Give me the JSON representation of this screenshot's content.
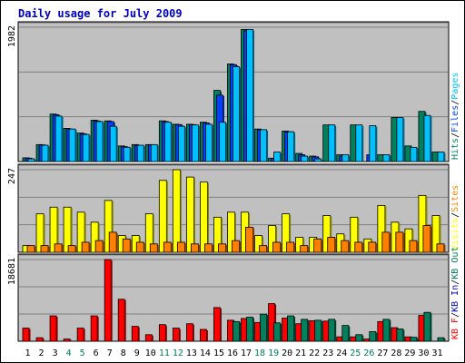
{
  "chart_data": {
    "type": "bar",
    "title": "Daily usage for July 2009",
    "colors": {
      "background": "#ffffff",
      "plot_bg": "#c0c0c0",
      "border": "#000000",
      "gridline": "#808080",
      "title": "#0000c0",
      "hits": "#00805c",
      "files": "#0040ff",
      "pages": "#00c0ff",
      "visits": "#ffff00",
      "sites": "#ff8000",
      "kb_in": "#0000c0",
      "kb_out": "#00805c",
      "kb_f": "#ff0000",
      "weekend_label": "#00805c",
      "weekday_label": "#000000"
    },
    "categories": [
      "1",
      "2",
      "3",
      "4",
      "5",
      "6",
      "7",
      "8",
      "9",
      "10",
      "11",
      "12",
      "13",
      "14",
      "15",
      "16",
      "17",
      "18",
      "19",
      "20",
      "21",
      "22",
      "23",
      "24",
      "25",
      "26",
      "27",
      "28",
      "29",
      "30",
      "31"
    ],
    "weekend_days": [
      "4",
      "5",
      "11",
      "12",
      "18",
      "19",
      "25",
      "26"
    ],
    "panels": [
      {
        "id": "hits-files-pages",
        "max_label": "1982",
        "ylim": [
          0,
          1982
        ],
        "legend": [
          {
            "text": "Hits",
            "color_key": "hits"
          },
          {
            "text": "/",
            "color_key": "border"
          },
          {
            "text": "Files",
            "color_key": "files"
          },
          {
            "text": "/",
            "color_key": "border"
          },
          {
            "text": "Pages",
            "color_key": "pages"
          }
        ],
        "series": [
          {
            "name": "Hits",
            "color_key": "hits",
            "values": [
              55,
              250,
              700,
              490,
              420,
              610,
              600,
              230,
              250,
              250,
              600,
              550,
              550,
              580,
              1050,
              1440,
              1950,
              480,
              50,
              450,
              120,
              80,
              540,
              100,
              540,
              0,
              100,
              650,
              230,
              740,
              140
            ]
          },
          {
            "name": "Files",
            "color_key": "files",
            "values": [
              50,
              245,
              690,
              480,
              410,
              600,
              590,
              220,
              240,
              245,
              590,
              545,
              545,
              570,
              980,
              1430,
              1930,
              470,
              45,
              440,
              100,
              70,
              0,
              80,
              0,
              100,
              0,
              0,
              0,
              0,
              0
            ]
          },
          {
            "name": "Pages",
            "color_key": "pages",
            "values": [
              40,
              240,
              670,
              480,
              400,
              590,
              520,
              210,
              240,
              250,
              580,
              520,
              540,
              550,
              580,
              1400,
              1950,
              470,
              140,
              440,
              80,
              40,
              540,
              100,
              540,
              530,
              100,
              650,
              210,
              680,
              140
            ]
          }
        ]
      },
      {
        "id": "visits-sites",
        "max_label": "247",
        "ylim": [
          0,
          247
        ],
        "legend": [
          {
            "text": "Visits",
            "color_key": "visits"
          },
          {
            "text": "/",
            "color_key": "border"
          },
          {
            "text": "Sites",
            "color_key": "sites"
          }
        ],
        "series": [
          {
            "name": "Visits",
            "color_key": "visits",
            "values": [
              20,
              115,
              135,
              135,
              120,
              90,
              155,
              50,
              50,
              115,
              215,
              247,
              225,
              210,
              105,
              120,
              120,
              50,
              80,
              115,
              45,
              45,
              110,
              55,
              105,
              40,
              140,
              90,
              70,
              170,
              110
            ]
          },
          {
            "name": "Sites",
            "color_key": "sites",
            "values": [
              20,
              20,
              25,
              20,
              30,
              35,
              60,
              40,
              30,
              25,
              30,
              30,
              25,
              25,
              25,
              35,
              75,
              20,
              30,
              30,
              20,
              40,
              45,
              35,
              30,
              30,
              60,
              60,
              35,
              80,
              25
            ]
          }
        ]
      },
      {
        "id": "kb",
        "max_label": "18681",
        "ylim": [
          0,
          18681
        ],
        "legend": [
          {
            "text": "KB F",
            "color_key": "kb_f"
          },
          {
            "text": "/",
            "color_key": "border"
          },
          {
            "text": "KB In",
            "color_key": "kb_in"
          },
          {
            "text": "/",
            "color_key": "border"
          },
          {
            "text": "KB Out",
            "color_key": "kb_out"
          }
        ],
        "series": [
          {
            "name": "KB F",
            "color_key": "kb_f",
            "values": [
              3000,
              800,
              5800,
              500,
              3000,
              5800,
              18681,
              9600,
              3400,
              1500,
              3800,
              3000,
              4000,
              2700,
              7700,
              4800,
              5200,
              4300,
              8600,
              5300,
              4000,
              4700,
              4600,
              1000,
              1000,
              500,
              4500,
              3100,
              1000,
              5900,
              0
            ]
          },
          {
            "name": "KB In",
            "color_key": "kb_in",
            "values": [
              0,
              0,
              0,
              0,
              0,
              0,
              0,
              0,
              0,
              0,
              0,
              0,
              0,
              0,
              0,
              0,
              0,
              0,
              0,
              0,
              0,
              0,
              0,
              0,
              0,
              0,
              0,
              0,
              0,
              0,
              0
            ]
          },
          {
            "name": "KB Out",
            "color_key": "kb_out",
            "values": [
              0,
              0,
              0,
              0,
              0,
              0,
              0,
              0,
              0,
              0,
              0,
              0,
              0,
              0,
              0,
              4500,
              5500,
              6200,
              4200,
              5800,
              5000,
              4800,
              5000,
              3600,
              1500,
              2200,
              5000,
              2800,
              900,
              6600,
              800
            ]
          }
        ]
      }
    ]
  }
}
